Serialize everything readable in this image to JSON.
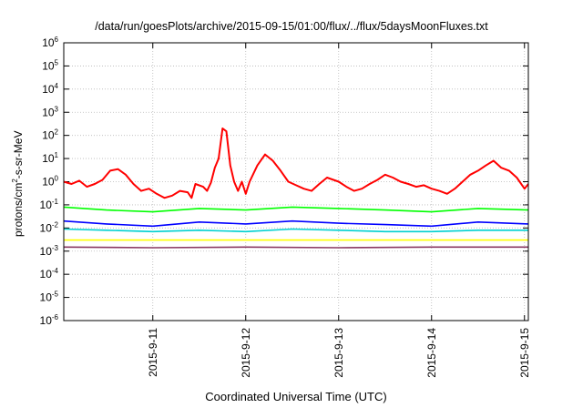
{
  "chart_data": {
    "type": "line",
    "title": "/data/run/goesPlots/archive/2015-09-15/01:00/flux/../flux/5daysMoonFluxes.txt",
    "xlabel": "Coordinated Universal Time (UTC)",
    "ylabel_prefix": "protons/cm",
    "ylabel_exp": "2",
    "ylabel_suffix": "-s-sr-MeV",
    "yscale": "log",
    "ylim": [
      1e-06,
      1000000.0
    ],
    "y_ticks": [
      {
        "value": 1e-06,
        "base": "10",
        "exp": "-6"
      },
      {
        "value": 1e-05,
        "base": "10",
        "exp": "-5"
      },
      {
        "value": 0.0001,
        "base": "10",
        "exp": "-4"
      },
      {
        "value": 0.001,
        "base": "10",
        "exp": "-3"
      },
      {
        "value": 0.01,
        "base": "10",
        "exp": "-2"
      },
      {
        "value": 0.1,
        "base": "10",
        "exp": "-1"
      },
      {
        "value": 1.0,
        "base": "10",
        "exp": "0"
      },
      {
        "value": 10.0,
        "base": "10",
        "exp": "1"
      },
      {
        "value": 100.0,
        "base": "10",
        "exp": "2"
      },
      {
        "value": 1000.0,
        "base": "10",
        "exp": "3"
      },
      {
        "value": 10000.0,
        "base": "10",
        "exp": "4"
      },
      {
        "value": 100000.0,
        "base": "10",
        "exp": "5"
      },
      {
        "value": 1000000.0,
        "base": "10",
        "exp": "6"
      }
    ],
    "xlim": [
      "2015-09-10 01:00",
      "2015-09-15 01:00"
    ],
    "x_ticks": [
      {
        "label": "2015-9-11",
        "time": "2015-09-11 00:00"
      },
      {
        "label": "2015-9-12",
        "time": "2015-09-12 00:00"
      },
      {
        "label": "2015-9-13",
        "time": "2015-09-13 00:00"
      },
      {
        "label": "2015-9-14",
        "time": "2015-09-14 00:00"
      },
      {
        "label": "2015-9-15",
        "time": "2015-09-15 00:00"
      }
    ],
    "grid": true,
    "series": [
      {
        "color": "#ff0000",
        "points": [
          [
            "2015-09-10 01:00",
            1.0
          ],
          [
            "2015-09-10 03:00",
            0.8
          ],
          [
            "2015-09-10 05:00",
            1.1
          ],
          [
            "2015-09-10 07:00",
            0.6
          ],
          [
            "2015-09-10 09:00",
            0.8
          ],
          [
            "2015-09-10 11:00",
            1.2
          ],
          [
            "2015-09-10 13:00",
            3.0
          ],
          [
            "2015-09-10 15:00",
            3.5
          ],
          [
            "2015-09-10 17:00",
            2.0
          ],
          [
            "2015-09-10 19:00",
            0.8
          ],
          [
            "2015-09-10 21:00",
            0.4
          ],
          [
            "2015-09-10 23:00",
            0.5
          ],
          [
            "2015-09-11 01:00",
            0.3
          ],
          [
            "2015-09-11 03:00",
            0.2
          ],
          [
            "2015-09-11 05:00",
            0.25
          ],
          [
            "2015-09-11 07:00",
            0.4
          ],
          [
            "2015-09-11 09:00",
            0.35
          ],
          [
            "2015-09-11 10:00",
            0.2
          ],
          [
            "2015-09-11 11:00",
            0.8
          ],
          [
            "2015-09-11 13:00",
            0.6
          ],
          [
            "2015-09-11 14:00",
            0.4
          ],
          [
            "2015-09-11 15:00",
            0.9
          ],
          [
            "2015-09-11 16:00",
            4.0
          ],
          [
            "2015-09-11 17:00",
            10.0
          ],
          [
            "2015-09-11 18:00",
            200.0
          ],
          [
            "2015-09-11 19:00",
            150.0
          ],
          [
            "2015-09-11 20:00",
            5.0
          ],
          [
            "2015-09-11 21:00",
            1.0
          ],
          [
            "2015-09-11 22:00",
            0.4
          ],
          [
            "2015-09-11 23:00",
            1.0
          ],
          [
            "2015-09-12 00:00",
            0.3
          ],
          [
            "2015-09-12 01:00",
            1.0
          ],
          [
            "2015-09-12 03:00",
            5.0
          ],
          [
            "2015-09-12 05:00",
            15.0
          ],
          [
            "2015-09-12 07:00",
            8.0
          ],
          [
            "2015-09-12 09:00",
            3.0
          ],
          [
            "2015-09-12 11:00",
            1.0
          ],
          [
            "2015-09-12 13:00",
            0.7
          ],
          [
            "2015-09-12 15:00",
            0.5
          ],
          [
            "2015-09-12 17:00",
            0.4
          ],
          [
            "2015-09-12 19:00",
            0.8
          ],
          [
            "2015-09-12 21:00",
            1.5
          ],
          [
            "2015-09-13 00:00",
            1.0
          ],
          [
            "2015-09-13 02:00",
            0.6
          ],
          [
            "2015-09-13 04:00",
            0.4
          ],
          [
            "2015-09-13 06:00",
            0.5
          ],
          [
            "2015-09-13 08:00",
            0.8
          ],
          [
            "2015-09-13 10:00",
            1.2
          ],
          [
            "2015-09-13 12:00",
            2.0
          ],
          [
            "2015-09-13 14:00",
            1.5
          ],
          [
            "2015-09-13 16:00",
            1.0
          ],
          [
            "2015-09-13 18:00",
            0.8
          ],
          [
            "2015-09-13 20:00",
            0.6
          ],
          [
            "2015-09-13 22:00",
            0.7
          ],
          [
            "2015-09-14 00:00",
            0.5
          ],
          [
            "2015-09-14 02:00",
            0.4
          ],
          [
            "2015-09-14 04:00",
            0.3
          ],
          [
            "2015-09-14 06:00",
            0.5
          ],
          [
            "2015-09-14 08:00",
            1.0
          ],
          [
            "2015-09-14 10:00",
            2.0
          ],
          [
            "2015-09-14 12:00",
            3.0
          ],
          [
            "2015-09-14 14:00",
            5.0
          ],
          [
            "2015-09-14 16:00",
            8.0
          ],
          [
            "2015-09-14 18:00",
            4.0
          ],
          [
            "2015-09-14 20:00",
            3.0
          ],
          [
            "2015-09-14 22:00",
            1.5
          ],
          [
            "2015-09-15 00:00",
            0.5
          ],
          [
            "2015-09-15 01:00",
            0.8
          ]
        ]
      },
      {
        "color": "#00ff00",
        "points": [
          [
            "2015-09-10 01:00",
            0.08
          ],
          [
            "2015-09-10 12:00",
            0.06
          ],
          [
            "2015-09-11 00:00",
            0.05
          ],
          [
            "2015-09-11 12:00",
            0.07
          ],
          [
            "2015-09-12 00:00",
            0.06
          ],
          [
            "2015-09-12 12:00",
            0.08
          ],
          [
            "2015-09-13 00:00",
            0.07
          ],
          [
            "2015-09-13 12:00",
            0.06
          ],
          [
            "2015-09-14 00:00",
            0.05
          ],
          [
            "2015-09-14 12:00",
            0.07
          ],
          [
            "2015-09-15 01:00",
            0.06
          ]
        ]
      },
      {
        "color": "#0000ff",
        "points": [
          [
            "2015-09-10 01:00",
            0.02
          ],
          [
            "2015-09-10 12:00",
            0.015
          ],
          [
            "2015-09-11 00:00",
            0.012
          ],
          [
            "2015-09-11 12:00",
            0.018
          ],
          [
            "2015-09-12 00:00",
            0.015
          ],
          [
            "2015-09-12 12:00",
            0.02
          ],
          [
            "2015-09-13 00:00",
            0.016
          ],
          [
            "2015-09-13 12:00",
            0.014
          ],
          [
            "2015-09-14 00:00",
            0.012
          ],
          [
            "2015-09-14 12:00",
            0.018
          ],
          [
            "2015-09-15 01:00",
            0.015
          ]
        ]
      },
      {
        "color": "#00d0d0",
        "points": [
          [
            "2015-09-10 01:00",
            0.009
          ],
          [
            "2015-09-10 12:00",
            0.008
          ],
          [
            "2015-09-11 00:00",
            0.007
          ],
          [
            "2015-09-11 12:00",
            0.008
          ],
          [
            "2015-09-12 00:00",
            0.007
          ],
          [
            "2015-09-12 12:00",
            0.009
          ],
          [
            "2015-09-13 00:00",
            0.008
          ],
          [
            "2015-09-13 12:00",
            0.007
          ],
          [
            "2015-09-14 00:00",
            0.007
          ],
          [
            "2015-09-14 12:00",
            0.008
          ],
          [
            "2015-09-15 01:00",
            0.008
          ]
        ]
      },
      {
        "color": "#ffff00",
        "points": [
          [
            "2015-09-10 01:00",
            0.003
          ],
          [
            "2015-09-11 00:00",
            0.003
          ],
          [
            "2015-09-12 00:00",
            0.003
          ],
          [
            "2015-09-13 00:00",
            0.003
          ],
          [
            "2015-09-14 00:00",
            0.003
          ],
          [
            "2015-09-15 01:00",
            0.003
          ]
        ]
      },
      {
        "color": "#8b3a62",
        "points": [
          [
            "2015-09-10 01:00",
            0.0015
          ],
          [
            "2015-09-11 00:00",
            0.0014
          ],
          [
            "2015-09-12 00:00",
            0.0015
          ],
          [
            "2015-09-13 00:00",
            0.0014
          ],
          [
            "2015-09-14 00:00",
            0.0015
          ],
          [
            "2015-09-15 01:00",
            0.0015
          ]
        ]
      }
    ]
  }
}
